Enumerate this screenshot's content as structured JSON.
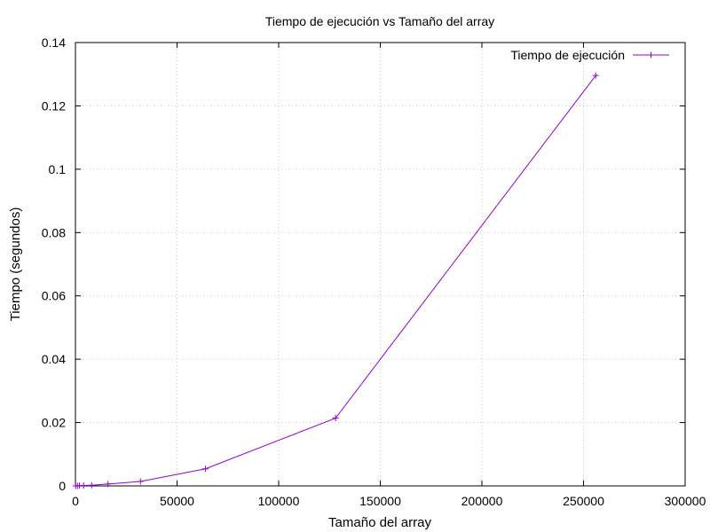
{
  "chart_data": {
    "type": "line",
    "title": "Tiempo de ejecución vs Tamaño del array",
    "xlabel": "Tamaño del array",
    "ylabel": "Tiempo (segundos)",
    "xlim": [
      0,
      300000
    ],
    "ylim": [
      0,
      0.14
    ],
    "xticks": [
      0,
      50000,
      100000,
      150000,
      200000,
      250000,
      300000
    ],
    "xtick_labels": [
      "0",
      "50000",
      "100000",
      "150000",
      "200000",
      "250000",
      "300000"
    ],
    "yticks": [
      0,
      0.02,
      0.04,
      0.06,
      0.08,
      0.1,
      0.12,
      0.14
    ],
    "ytick_labels": [
      "0",
      "0.02",
      "0.04",
      "0.06",
      "0.08",
      "0.1",
      "0.12",
      "0.14"
    ],
    "grid": true,
    "legend_position": "top-right",
    "series": [
      {
        "name": "Tiempo de ejecución",
        "color": "#9400d3",
        "marker": "plus",
        "x": [
          100,
          1000,
          2000,
          4000,
          8000,
          16000,
          32000,
          64000,
          128000,
          256000
        ],
        "y": [
          0.0,
          0.0,
          0.0001,
          0.0001,
          0.0002,
          0.0006,
          0.0014,
          0.0054,
          0.0214,
          0.1296
        ]
      }
    ]
  }
}
